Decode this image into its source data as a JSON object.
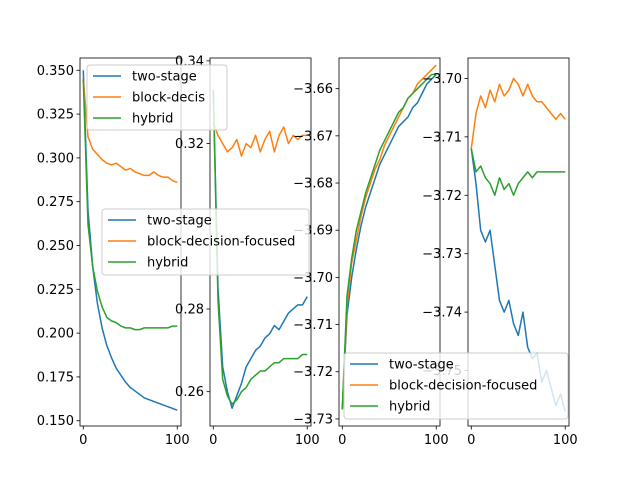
{
  "colors": {
    "two-stage": "#1f77b4",
    "block-decision-focused": "#ff7f0e",
    "hybrid": "#2ca02c"
  },
  "chart_data": [
    {
      "type": "line",
      "x": [
        0,
        5,
        10,
        15,
        20,
        25,
        30,
        35,
        40,
        45,
        50,
        55,
        60,
        65,
        70,
        75,
        80,
        85,
        90,
        95,
        100
      ],
      "series": [
        {
          "name": "two-stage",
          "values": [
            0.35,
            0.27,
            0.238,
            0.217,
            0.203,
            0.193,
            0.186,
            0.18,
            0.176,
            0.172,
            0.169,
            0.167,
            0.165,
            0.163,
            0.162,
            0.161,
            0.16,
            0.159,
            0.158,
            0.157,
            0.156
          ]
        },
        {
          "name": "block-decision-focused",
          "values": [
            0.345,
            0.312,
            0.305,
            0.302,
            0.299,
            0.297,
            0.296,
            0.297,
            0.295,
            0.293,
            0.294,
            0.292,
            0.291,
            0.29,
            0.29,
            0.292,
            0.29,
            0.289,
            0.289,
            0.287,
            0.286
          ]
        },
        {
          "name": "hybrid",
          "values": [
            0.345,
            0.262,
            0.238,
            0.224,
            0.215,
            0.209,
            0.207,
            0.206,
            0.204,
            0.203,
            0.203,
            0.202,
            0.202,
            0.203,
            0.203,
            0.203,
            0.203,
            0.203,
            0.203,
            0.204,
            0.204
          ]
        }
      ],
      "xlim": [
        -3.5,
        104
      ],
      "ylim": [
        0.147,
        0.357
      ],
      "xticks": [
        "0",
        "100"
      ],
      "yticks": [
        "0.150",
        "0.175",
        "0.200",
        "0.225",
        "0.250",
        "0.275",
        "0.300",
        "0.325",
        "0.350"
      ],
      "legend": {
        "placement": "top-right",
        "entries": [
          "two-stage",
          "block-decis",
          "hybrid"
        ]
      }
    },
    {
      "type": "line",
      "x": [
        0,
        5,
        10,
        15,
        20,
        25,
        30,
        35,
        40,
        45,
        50,
        55,
        60,
        65,
        70,
        75,
        80,
        85,
        90,
        95,
        100
      ],
      "series": [
        {
          "name": "two-stage",
          "values": [
            0.333,
            0.285,
            0.266,
            0.26,
            0.256,
            0.259,
            0.262,
            0.266,
            0.268,
            0.27,
            0.271,
            0.273,
            0.274,
            0.276,
            0.275,
            0.277,
            0.279,
            0.28,
            0.281,
            0.281,
            0.283
          ]
        },
        {
          "name": "block-decision-focused",
          "values": [
            0.325,
            0.322,
            0.32,
            0.318,
            0.319,
            0.321,
            0.317,
            0.32,
            0.319,
            0.322,
            0.318,
            0.321,
            0.323,
            0.318,
            0.322,
            0.324,
            0.32,
            0.322,
            0.321,
            0.322,
            0.322
          ]
        },
        {
          "name": "hybrid",
          "values": [
            0.333,
            0.282,
            0.263,
            0.259,
            0.257,
            0.258,
            0.26,
            0.261,
            0.263,
            0.264,
            0.265,
            0.265,
            0.266,
            0.267,
            0.267,
            0.268,
            0.268,
            0.268,
            0.268,
            0.269,
            0.269
          ]
        }
      ],
      "xlim": [
        -3.5,
        104
      ],
      "ylim": [
        0.2517,
        0.3407
      ],
      "xticks": [
        "0",
        "100"
      ],
      "yticks": [
        "0.26",
        "0.28",
        "0.32",
        "0.34"
      ],
      "legend": {
        "placement": "center",
        "entries": [
          "two-stage",
          "block-decision-focused",
          "hybrid"
        ]
      }
    },
    {
      "type": "line",
      "x": [
        0,
        5,
        10,
        15,
        20,
        25,
        30,
        35,
        40,
        45,
        50,
        55,
        60,
        65,
        70,
        75,
        80,
        85,
        90,
        95,
        100
      ],
      "series": [
        {
          "name": "two-stage",
          "values": [
            -3.728,
            -3.708,
            -3.7,
            -3.694,
            -3.689,
            -3.685,
            -3.682,
            -3.679,
            -3.676,
            -3.674,
            -3.672,
            -3.67,
            -3.668,
            -3.667,
            -3.666,
            -3.664,
            -3.663,
            -3.661,
            -3.659,
            -3.658,
            -3.657
          ]
        },
        {
          "name": "block-decision-focused",
          "values": [
            -3.728,
            -3.706,
            -3.697,
            -3.692,
            -3.687,
            -3.683,
            -3.68,
            -3.677,
            -3.675,
            -3.672,
            -3.67,
            -3.668,
            -3.666,
            -3.664,
            -3.662,
            -3.661,
            -3.659,
            -3.658,
            -3.657,
            -3.656,
            -3.655
          ]
        },
        {
          "name": "hybrid",
          "values": [
            -3.728,
            -3.704,
            -3.696,
            -3.69,
            -3.686,
            -3.682,
            -3.679,
            -3.676,
            -3.673,
            -3.671,
            -3.669,
            -3.667,
            -3.665,
            -3.664,
            -3.662,
            -3.661,
            -3.66,
            -3.659,
            -3.658,
            -3.657,
            -3.657
          ]
        }
      ],
      "xlim": [
        -3.5,
        104
      ],
      "ylim": [
        -3.7315,
        -3.6535
      ],
      "xticks": [
        "0",
        "100"
      ],
      "yticks": [
        "−3.73",
        "−3.72",
        "−3.71",
        "−3.70",
        "−3.69",
        "−3.68",
        "−3.67",
        "−3.66"
      ],
      "legend": {
        "placement": "lower center",
        "entries": [
          "two-stage",
          "block-decision-focused",
          "hybrid"
        ]
      }
    },
    {
      "type": "line",
      "x": [
        0,
        5,
        10,
        15,
        20,
        25,
        30,
        35,
        40,
        45,
        50,
        55,
        60,
        65,
        70,
        75,
        80,
        85,
        90,
        95,
        100
      ],
      "series": [
        {
          "name": "two-stage",
          "values": [
            -3.712,
            -3.718,
            -3.726,
            -3.728,
            -3.726,
            -3.732,
            -3.738,
            -3.74,
            -3.738,
            -3.742,
            -3.744,
            -3.74,
            -3.746,
            -3.748,
            -3.747,
            -3.752,
            -3.75,
            -3.753,
            -3.756,
            -3.754,
            -3.757
          ]
        },
        {
          "name": "block-decision-focused",
          "values": [
            -3.712,
            -3.706,
            -3.703,
            -3.705,
            -3.702,
            -3.704,
            -3.701,
            -3.703,
            -3.702,
            -3.7,
            -3.701,
            -3.703,
            -3.701,
            -3.703,
            -3.704,
            -3.704,
            -3.705,
            -3.706,
            -3.707,
            -3.706,
            -3.707
          ]
        },
        {
          "name": "hybrid",
          "values": [
            -3.712,
            -3.716,
            -3.715,
            -3.717,
            -3.718,
            -3.72,
            -3.717,
            -3.719,
            -3.718,
            -3.72,
            -3.718,
            -3.717,
            -3.716,
            -3.717,
            -3.716,
            -3.716,
            -3.716,
            -3.716,
            -3.716,
            -3.716,
            -3.716
          ]
        }
      ],
      "xlim": [
        -3.5,
        104
      ],
      "ylim": [
        -3.7595,
        -3.6965
      ],
      "xticks": [
        "0",
        "100"
      ],
      "yticks": [
        "−3.70",
        "−3.71",
        "−3.72",
        "−3.73",
        "−3.74",
        "−3.75"
      ],
      "legend": {
        "placement": "lower left",
        "entries": [
          "two-stage",
          "block-decision-focused",
          "hybrid"
        ]
      }
    }
  ]
}
